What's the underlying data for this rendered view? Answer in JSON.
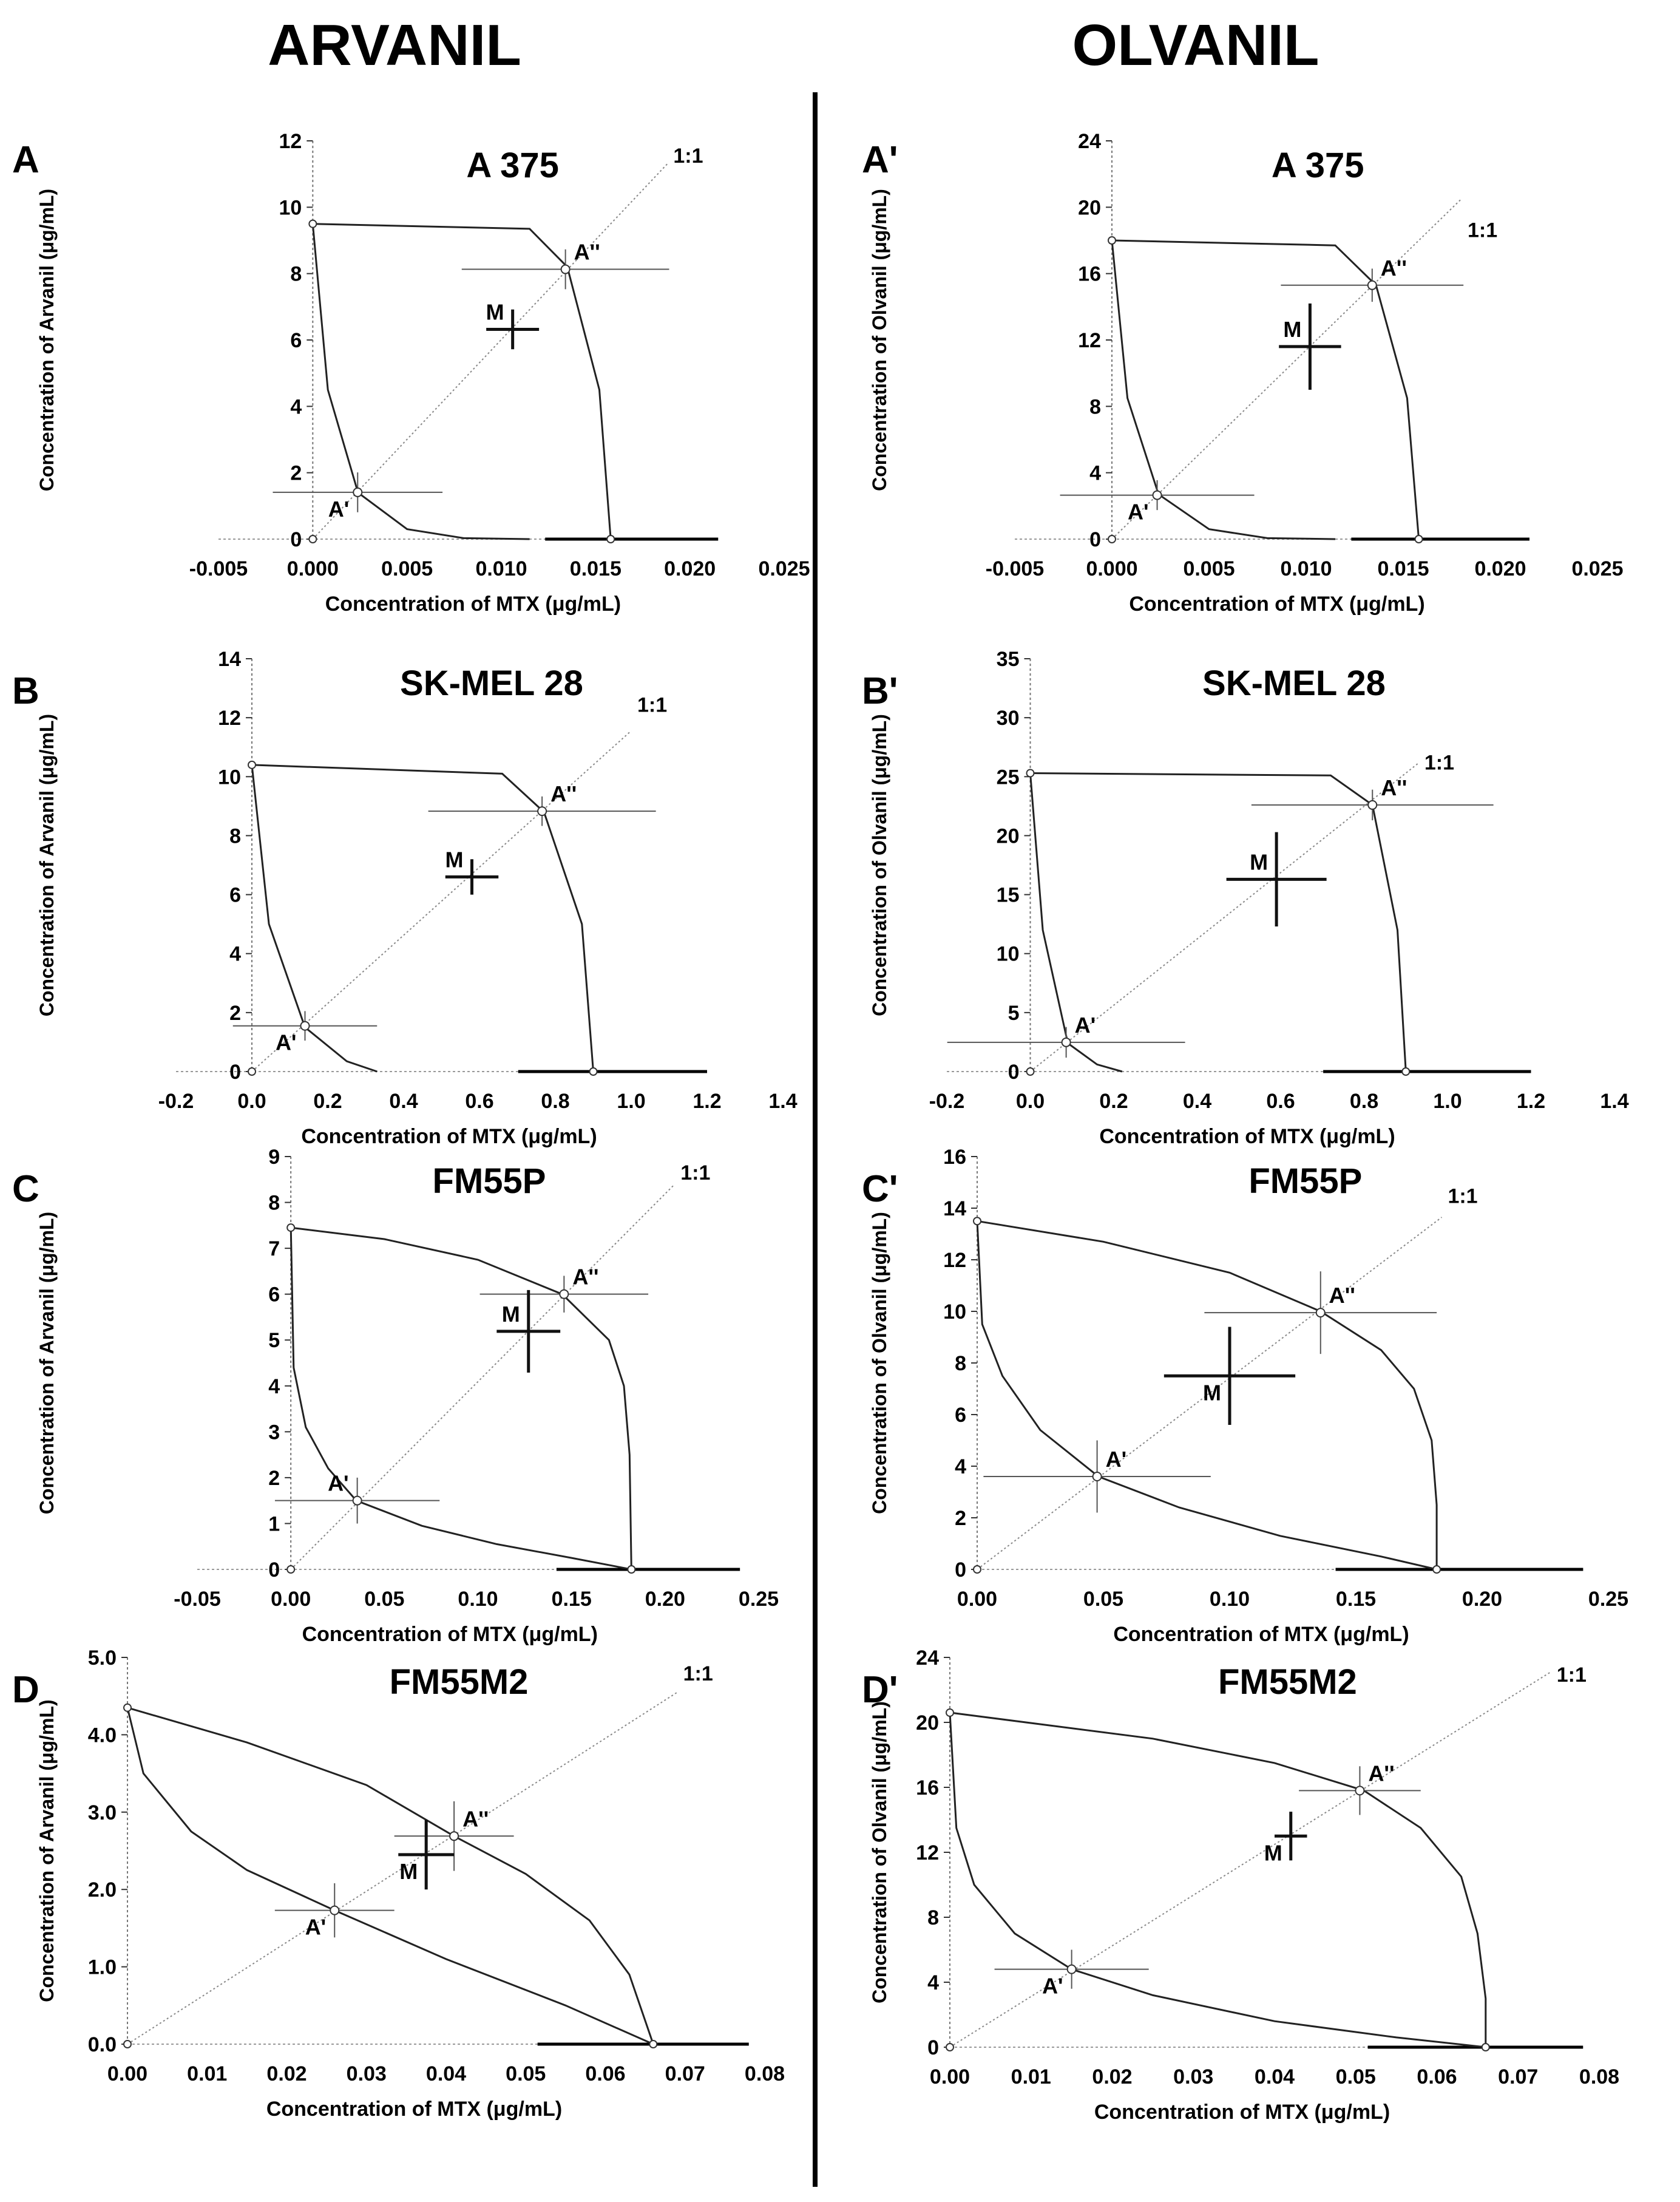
{
  "header": {
    "left": "ARVANIL",
    "right": "OLVANIL"
  },
  "chart_data": [
    {
      "panel": "A",
      "type": "scatter",
      "title": "A 375",
      "xlabel": "Concentration of MTX (μg/mL)",
      "ylabel": "Concentration of Arvanil (μg/mL)",
      "xlim": [
        -0.005,
        0.025
      ],
      "ylim": [
        0,
        12
      ],
      "xticks": [
        -0.005,
        0,
        0.005,
        0.01,
        0.015,
        0.02,
        0.025
      ],
      "yticks": [
        0,
        2,
        4,
        6,
        8,
        10,
        12
      ],
      "xdec": 3,
      "ydec": 0,
      "ad_x": 0.0158,
      "ad_y": 9.5,
      "add_curve": [
        [
          0,
          9.5
        ],
        [
          0.0115,
          9.35
        ],
        [
          0.0135,
          8.2
        ],
        [
          0.0152,
          4.5
        ],
        [
          0.0158,
          0
        ]
      ],
      "sub_curve": [
        [
          0,
          9.5
        ],
        [
          0.0008,
          4.5
        ],
        [
          0.0024,
          1.4
        ],
        [
          0.005,
          0.3
        ],
        [
          0.008,
          0.03
        ],
        [
          0.0115,
          0
        ]
      ],
      "xaxis_end": 0.0215,
      "points": [
        {
          "name": "A'",
          "x": 0.00238,
          "y": 1.41,
          "ex": 0.0045,
          "ey": 0.6,
          "lx": -1,
          "ly": 1
        },
        {
          "name": "A''",
          "x": 0.0134,
          "y": 8.13,
          "ex": 0.0055,
          "ey": 0.6,
          "lx": 1,
          "ly": -1
        },
        {
          "name": "M",
          "x": 0.0106,
          "y": 6.32,
          "ex": 0.0014,
          "ey": 0.6,
          "lx": -1,
          "ly": -1
        }
      ],
      "ratio_label": "1:1",
      "ratio_x": 0.0188,
      "ratio_y": 11.34
    },
    {
      "panel": "A'",
      "type": "scatter",
      "title": "A 375",
      "xlabel": "Concentration of MTX (μg/mL)",
      "ylabel": "Concentration of Olvanil (μg/mL)",
      "xlim": [
        -0.005,
        0.025
      ],
      "ylim": [
        0,
        24
      ],
      "xticks": [
        -0.005,
        0,
        0.005,
        0.01,
        0.015,
        0.02,
        0.025
      ],
      "yticks": [
        0,
        4,
        8,
        12,
        16,
        20,
        24
      ],
      "xdec": 3,
      "ydec": 0,
      "ad_x": 0.0158,
      "ad_y": 18.0,
      "add_curve": [
        [
          0,
          18
        ],
        [
          0.0115,
          17.7
        ],
        [
          0.0136,
          15.3
        ],
        [
          0.0152,
          8.5
        ],
        [
          0.0158,
          0
        ]
      ],
      "sub_curve": [
        [
          0,
          18
        ],
        [
          0.0008,
          8.5
        ],
        [
          0.0024,
          2.7
        ],
        [
          0.005,
          0.6
        ],
        [
          0.008,
          0.06
        ],
        [
          0.0115,
          0
        ]
      ],
      "xaxis_end": 0.0215,
      "points": [
        {
          "name": "A'",
          "x": 0.00233,
          "y": 2.65,
          "ex": 0.005,
          "ey": 0.9,
          "lx": -1,
          "ly": 1
        },
        {
          "name": "A''",
          "x": 0.0134,
          "y": 15.3,
          "ex": 0.0047,
          "ey": 1.0,
          "lx": 1,
          "ly": -1
        },
        {
          "name": "M",
          "x": 0.0102,
          "y": 11.6,
          "ex": 0.0016,
          "ey": 2.6,
          "lx": -1,
          "ly": -1
        }
      ],
      "ratio_label": "1:1",
      "ratio_x": 0.018,
      "ratio_y": 18.2
    },
    {
      "panel": "B",
      "type": "scatter",
      "title": "SK-MEL 28",
      "xlabel": "Concentration of MTX (μg/mL)",
      "ylabel": "Concentration of Arvanil (μg/mL)",
      "xlim": [
        -0.2,
        1.4
      ],
      "ylim": [
        0,
        14
      ],
      "xticks": [
        -0.2,
        0,
        0.2,
        0.4,
        0.6,
        0.8,
        1.0,
        1.2,
        1.4
      ],
      "yticks": [
        0,
        2,
        4,
        6,
        8,
        10,
        12,
        14
      ],
      "xdec": 1,
      "ydec": 0,
      "ad_x": 0.9,
      "ad_y": 10.4,
      "add_curve": [
        [
          0,
          10.4
        ],
        [
          0.66,
          10.1
        ],
        [
          0.77,
          8.8
        ],
        [
          0.87,
          5
        ],
        [
          0.9,
          0
        ]
      ],
      "sub_curve": [
        [
          0,
          10.4
        ],
        [
          0.045,
          5
        ],
        [
          0.14,
          1.5
        ],
        [
          0.25,
          0.35
        ],
        [
          0.33,
          0
        ]
      ],
      "xaxis_end": 1.2,
      "points": [
        {
          "name": "A'",
          "x": 0.14,
          "y": 1.55,
          "ex": 0.19,
          "ey": 0.5,
          "lx": -1,
          "ly": 1
        },
        {
          "name": "A''",
          "x": 0.765,
          "y": 8.83,
          "ex": 0.3,
          "ey": 0.5,
          "lx": 1,
          "ly": -1
        },
        {
          "name": "M",
          "x": 0.58,
          "y": 6.6,
          "ex": 0.07,
          "ey": 0.6,
          "lx": -1,
          "ly": -1
        }
      ],
      "ratio_label": "1:1",
      "ratio_x": 1.0,
      "ratio_y": 12.2
    },
    {
      "panel": "B'",
      "type": "scatter",
      "title": "SK-MEL 28",
      "xlabel": "Concentration of MTX (μg/mL)",
      "ylabel": "Concentration of Olvanil (μg/mL)",
      "xlim": [
        -0.2,
        1.4
      ],
      "ylim": [
        0,
        35
      ],
      "xticks": [
        -0.2,
        0,
        0.2,
        0.4,
        0.6,
        0.8,
        1.0,
        1.2,
        1.4
      ],
      "yticks": [
        0,
        5,
        10,
        15,
        20,
        25,
        30,
        35
      ],
      "xdec": 1,
      "ydec": 0,
      "ad_x": 0.9,
      "ad_y": 25.3,
      "add_curve": [
        [
          0,
          25.3
        ],
        [
          0.72,
          25.1
        ],
        [
          0.82,
          22.6
        ],
        [
          0.88,
          12
        ],
        [
          0.9,
          0
        ]
      ],
      "sub_curve": [
        [
          0,
          25.3
        ],
        [
          0.03,
          12
        ],
        [
          0.09,
          2.4
        ],
        [
          0.16,
          0.6
        ],
        [
          0.22,
          0
        ]
      ],
      "xaxis_end": 1.2,
      "points": [
        {
          "name": "A'",
          "x": 0.086,
          "y": 2.48,
          "ex": 0.285,
          "ey": 1.3,
          "lx": 1,
          "ly": -1
        },
        {
          "name": "A''",
          "x": 0.82,
          "y": 22.6,
          "ex": 0.29,
          "ey": 1.3,
          "lx": 1,
          "ly": -1
        },
        {
          "name": "M",
          "x": 0.59,
          "y": 16.3,
          "ex": 0.12,
          "ey": 4.0,
          "lx": -1,
          "ly": -1
        }
      ],
      "ratio_label": "1:1",
      "ratio_x": 0.93,
      "ratio_y": 25.6
    },
    {
      "panel": "C",
      "type": "scatter",
      "title": "FM55P",
      "xlabel": "Concentration of MTX (μg/mL)",
      "ylabel": "Concentration of Arvanil (μg/mL)",
      "xlim": [
        -0.05,
        0.25
      ],
      "ylim": [
        0,
        9
      ],
      "xticks": [
        -0.05,
        0,
        0.05,
        0.1,
        0.15,
        0.2,
        0.25
      ],
      "yticks": [
        0,
        1,
        2,
        3,
        4,
        5,
        6,
        7,
        8,
        9
      ],
      "xdec": 2,
      "ydec": 0,
      "ad_x": 0.182,
      "ad_y": 7.45,
      "add_curve": [
        [
          0,
          7.45
        ],
        [
          0.05,
          7.2
        ],
        [
          0.1,
          6.75
        ],
        [
          0.145,
          6.0
        ],
        [
          0.17,
          5.0
        ],
        [
          0.178,
          4.0
        ],
        [
          0.181,
          2.5
        ],
        [
          0.182,
          0
        ]
      ],
      "sub_curve": [
        [
          0,
          7.45
        ],
        [
          0.0015,
          4.4
        ],
        [
          0.008,
          3.1
        ],
        [
          0.02,
          2.2
        ],
        [
          0.035,
          1.5
        ],
        [
          0.07,
          0.95
        ],
        [
          0.11,
          0.55
        ],
        [
          0.15,
          0.25
        ],
        [
          0.182,
          0
        ]
      ],
      "xaxis_end": 0.24,
      "points": [
        {
          "name": "A'",
          "x": 0.0355,
          "y": 1.5,
          "ex": 0.044,
          "ey": 0.5,
          "lx": -1,
          "ly": -1
        },
        {
          "name": "A''",
          "x": 0.146,
          "y": 6.0,
          "ex": 0.045,
          "ey": 0.4,
          "lx": 1,
          "ly": -1
        },
        {
          "name": "M",
          "x": 0.127,
          "y": 5.19,
          "ex": 0.017,
          "ey": 0.9,
          "lx": -1,
          "ly": -1
        }
      ],
      "ratio_label": "1:1",
      "ratio_x": 0.205,
      "ratio_y": 8.5
    },
    {
      "panel": "C'",
      "type": "scatter",
      "title": "FM55P",
      "xlabel": "Concentration of MTX (μg/mL)",
      "ylabel": "Concentration of Olvanil (μg/mL)",
      "xlim": [
        0,
        0.25
      ],
      "ylim": [
        0,
        16
      ],
      "xticks": [
        0,
        0.05,
        0.1,
        0.15,
        0.2,
        0.25
      ],
      "yticks": [
        0,
        2,
        4,
        6,
        8,
        10,
        12,
        14,
        16
      ],
      "xdec": 2,
      "ydec": 0,
      "ad_x": 0.182,
      "ad_y": 13.5,
      "add_curve": [
        [
          0,
          13.5
        ],
        [
          0.05,
          12.7
        ],
        [
          0.1,
          11.5
        ],
        [
          0.136,
          10.0
        ],
        [
          0.16,
          8.5
        ],
        [
          0.173,
          7.0
        ],
        [
          0.18,
          5.0
        ],
        [
          0.182,
          2.5
        ],
        [
          0.182,
          0
        ]
      ],
      "sub_curve": [
        [
          0,
          13.5
        ],
        [
          0.002,
          9.5
        ],
        [
          0.01,
          7.5
        ],
        [
          0.025,
          5.4
        ],
        [
          0.048,
          3.6
        ],
        [
          0.08,
          2.4
        ],
        [
          0.12,
          1.3
        ],
        [
          0.16,
          0.5
        ],
        [
          0.182,
          0
        ]
      ],
      "xaxis_end": 0.24,
      "points": [
        {
          "name": "A'",
          "x": 0.0475,
          "y": 3.6,
          "ex": 0.045,
          "ey": 1.4,
          "lx": 1,
          "ly": -1
        },
        {
          "name": "A''",
          "x": 0.136,
          "y": 9.95,
          "ex": 0.046,
          "ey": 1.6,
          "lx": 1,
          "ly": -1
        },
        {
          "name": "M",
          "x": 0.1,
          "y": 7.5,
          "ex": 0.026,
          "ey": 1.9,
          "lx": -1,
          "ly": 1
        }
      ],
      "ratio_label": "1:1",
      "ratio_x": 0.184,
      "ratio_y": 14.2
    },
    {
      "panel": "D",
      "type": "scatter",
      "title": "FM55M2",
      "xlabel": "Concentration of MTX (μg/mL)",
      "ylabel": "Concentration of Arvanil (μg/mL)",
      "xlim": [
        0,
        0.08
      ],
      "ylim": [
        0,
        5
      ],
      "xticks": [
        0,
        0.01,
        0.02,
        0.03,
        0.04,
        0.05,
        0.06,
        0.07,
        0.08
      ],
      "yticks": [
        0,
        1,
        2,
        3,
        4,
        5
      ],
      "xdec": 2,
      "ydec": 1,
      "ad_x": 0.066,
      "ad_y": 4.35,
      "add_curve": [
        [
          0,
          4.35
        ],
        [
          0.015,
          3.9
        ],
        [
          0.03,
          3.35
        ],
        [
          0.041,
          2.69
        ],
        [
          0.05,
          2.2
        ],
        [
          0.058,
          1.6
        ],
        [
          0.063,
          0.9
        ],
        [
          0.066,
          0
        ]
      ],
      "sub_curve": [
        [
          0,
          4.35
        ],
        [
          0.002,
          3.5
        ],
        [
          0.008,
          2.75
        ],
        [
          0.015,
          2.25
        ],
        [
          0.026,
          1.73
        ],
        [
          0.04,
          1.1
        ],
        [
          0.055,
          0.5
        ],
        [
          0.066,
          0
        ]
      ],
      "xaxis_end": 0.078,
      "points": [
        {
          "name": "A'",
          "x": 0.026,
          "y": 1.73,
          "ex": 0.0075,
          "ey": 0.35,
          "lx": -1,
          "ly": 1
        },
        {
          "name": "A''",
          "x": 0.041,
          "y": 2.69,
          "ex": 0.0075,
          "ey": 0.45,
          "lx": 1,
          "ly": -1
        },
        {
          "name": "M",
          "x": 0.0375,
          "y": 2.45,
          "ex": 0.0035,
          "ey": 0.45,
          "lx": -1,
          "ly": 1
        }
      ],
      "ratio_label": "1:1",
      "ratio_x": 0.069,
      "ratio_y": 4.7
    },
    {
      "panel": "D'",
      "type": "scatter",
      "title": "FM55M2",
      "xlabel": "Concentration of MTX (μg/mL)",
      "ylabel": "Concentration of Olvanil (μg/mL)",
      "xlim": [
        0,
        0.08
      ],
      "ylim": [
        0,
        24
      ],
      "xticks": [
        0,
        0.01,
        0.02,
        0.03,
        0.04,
        0.05,
        0.06,
        0.07,
        0.08
      ],
      "yticks": [
        0,
        4,
        8,
        12,
        16,
        20,
        24
      ],
      "xdec": 2,
      "ydec": 0,
      "ad_x": 0.066,
      "ad_y": 20.6,
      "add_curve": [
        [
          0,
          20.6
        ],
        [
          0.025,
          19.0
        ],
        [
          0.04,
          17.5
        ],
        [
          0.051,
          15.8
        ],
        [
          0.058,
          13.5
        ],
        [
          0.063,
          10.5
        ],
        [
          0.065,
          7.0
        ],
        [
          0.066,
          3.0
        ],
        [
          0.066,
          0
        ]
      ],
      "sub_curve": [
        [
          0,
          20.6
        ],
        [
          0.0008,
          13.5
        ],
        [
          0.003,
          10
        ],
        [
          0.008,
          7
        ],
        [
          0.015,
          4.8
        ],
        [
          0.025,
          3.2
        ],
        [
          0.04,
          1.6
        ],
        [
          0.055,
          0.6
        ],
        [
          0.066,
          0
        ]
      ],
      "xaxis_end": 0.078,
      "points": [
        {
          "name": "A'",
          "x": 0.015,
          "y": 4.8,
          "ex": 0.0095,
          "ey": 1.2,
          "lx": -1,
          "ly": 1
        },
        {
          "name": "A''",
          "x": 0.0505,
          "y": 15.8,
          "ex": 0.0075,
          "ey": 1.5,
          "lx": 1,
          "ly": -1
        },
        {
          "name": "M",
          "x": 0.042,
          "y": 13.0,
          "ex": 0.002,
          "ey": 1.5,
          "lx": -1,
          "ly": 1
        }
      ],
      "ratio_label": "1:1",
      "ratio_x": 0.074,
      "ratio_y": 22.5
    }
  ]
}
